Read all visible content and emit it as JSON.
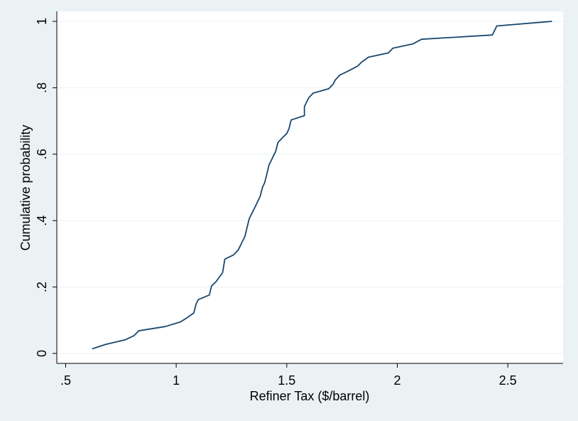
{
  "chart_data": {
    "type": "line",
    "title": "",
    "xlabel": "Refiner Tax ($/barrel)",
    "ylabel": "Cumulative probability",
    "xlim": [
      0.46,
      2.75
    ],
    "ylim": [
      -0.03,
      1.03
    ],
    "xticks": [
      0.5,
      1,
      1.5,
      2,
      2.5
    ],
    "xtick_labels": [
      ".5",
      "1",
      "1.5",
      "2",
      "2.5"
    ],
    "yticks": [
      0,
      0.2,
      0.4,
      0.6,
      0.8,
      1
    ],
    "ytick_labels": [
      "0",
      ".2",
      ".4",
      ".6",
      ".8",
      "1"
    ],
    "grid": true,
    "colors": {
      "line": "#1a476f",
      "plot_bg": "#ffffff",
      "outer_bg": "#eaf2f3",
      "grid": "#eaf2f3"
    },
    "series": [
      {
        "x": [
          0.62,
          0.68,
          0.77,
          0.81,
          0.83,
          0.95,
          1.02,
          1.05,
          1.08,
          1.09,
          1.1,
          1.15,
          1.16,
          1.18,
          1.21,
          1.22,
          1.26,
          1.28,
          1.29,
          1.3,
          1.31,
          1.32,
          1.33,
          1.34,
          1.35,
          1.37,
          1.38,
          1.39,
          1.4,
          1.41,
          1.42,
          1.43,
          1.44,
          1.45,
          1.46,
          1.48,
          1.5,
          1.51,
          1.52,
          1.58,
          1.58,
          1.59,
          1.6,
          1.62,
          1.69,
          1.71,
          1.72,
          1.74,
          1.78,
          1.82,
          1.84,
          1.87,
          1.96,
          1.98,
          2.07,
          2.11,
          2.43,
          2.45,
          2.7
        ],
        "y": [
          0.014,
          0.027,
          0.041,
          0.054,
          0.068,
          0.081,
          0.095,
          0.108,
          0.122,
          0.149,
          0.162,
          0.176,
          0.203,
          0.216,
          0.243,
          0.284,
          0.297,
          0.311,
          0.324,
          0.338,
          0.351,
          0.378,
          0.405,
          0.419,
          0.432,
          0.459,
          0.473,
          0.5,
          0.514,
          0.54,
          0.568,
          0.581,
          0.595,
          0.608,
          0.635,
          0.649,
          0.662,
          0.676,
          0.703,
          0.716,
          0.743,
          0.757,
          0.77,
          0.784,
          0.797,
          0.811,
          0.824,
          0.838,
          0.851,
          0.865,
          0.878,
          0.892,
          0.905,
          0.919,
          0.932,
          0.946,
          0.959,
          0.986,
          1.0
        ]
      }
    ]
  }
}
